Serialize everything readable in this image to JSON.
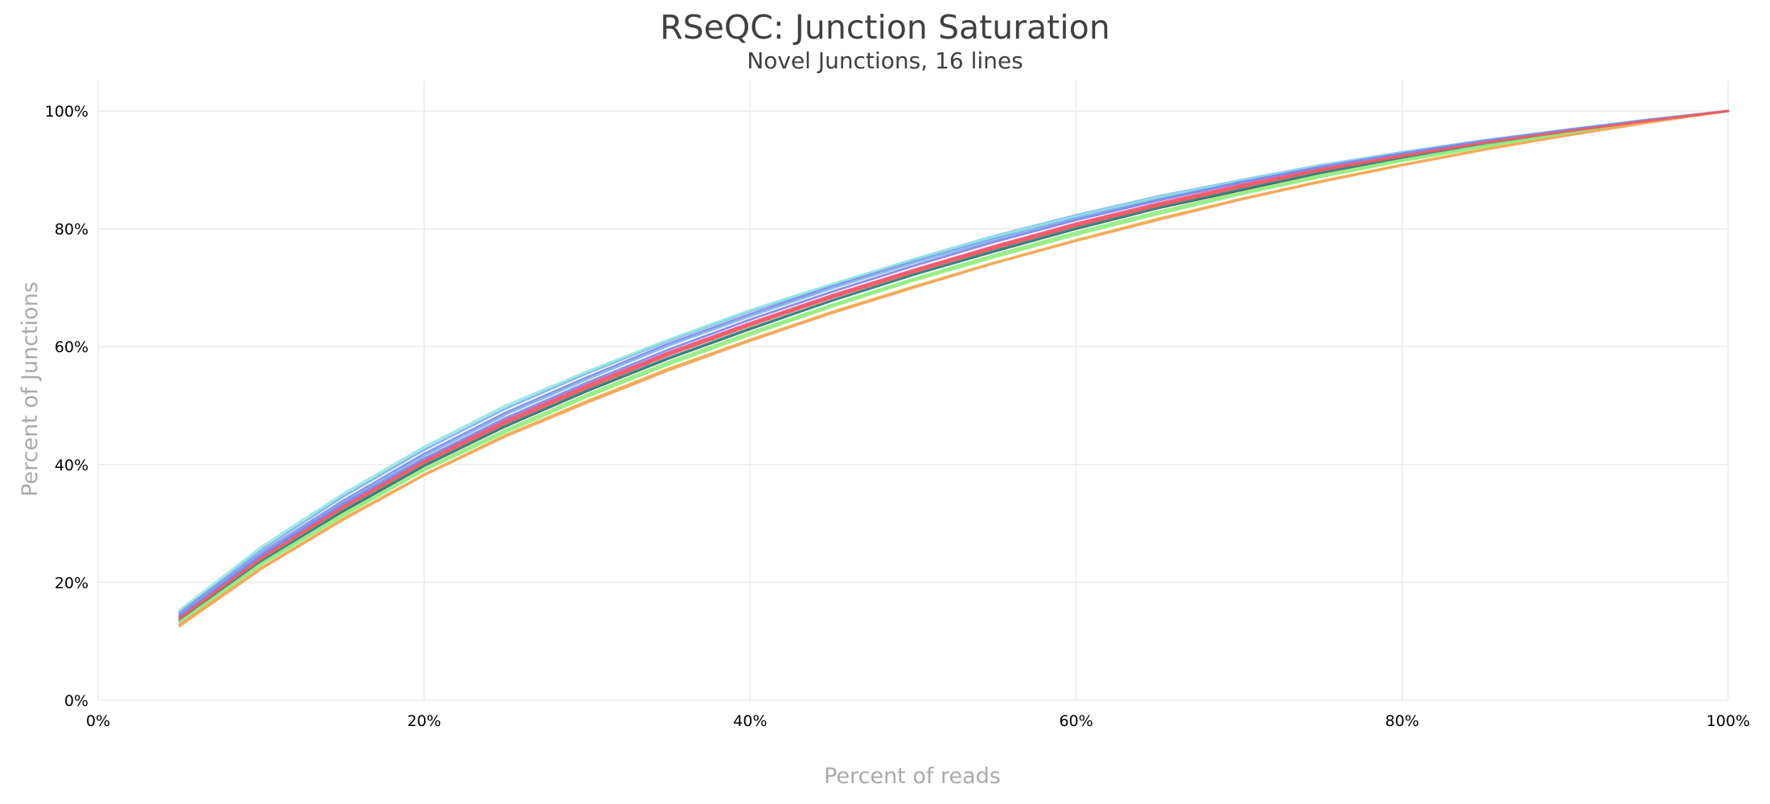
{
  "chart_data": {
    "type": "line",
    "title": "RSeQC: Junction Saturation",
    "subtitle": "Novel Junctions, 16 lines",
    "xlabel": "Percent of reads",
    "ylabel": "Percent of Junctions",
    "xlim": [
      0,
      100
    ],
    "ylim": [
      0,
      100
    ],
    "xticks": [
      0,
      20,
      40,
      60,
      80,
      100
    ],
    "yticks": [
      0,
      20,
      40,
      60,
      80,
      100
    ],
    "tick_suffix": "%",
    "grid": true,
    "x": [
      5,
      10,
      15,
      20,
      25,
      30,
      35,
      40,
      45,
      50,
      55,
      60,
      65,
      70,
      75,
      80,
      85,
      90,
      95,
      100
    ],
    "series": [
      {
        "color": "#7cb5ec",
        "values": [
          15.0,
          25.5,
          34.5,
          42.5,
          49.5,
          55.5,
          61.0,
          66.0,
          70.5,
          74.8,
          78.8,
          82.3,
          85.5,
          88.2,
          90.8,
          93.0,
          95.0,
          96.8,
          98.5,
          100
        ]
      },
      {
        "color": "#434348",
        "values": [
          13.5,
          23.5,
          32.0,
          39.8,
          46.5,
          52.5,
          58.0,
          63.0,
          67.8,
          72.2,
          76.2,
          80.0,
          83.5,
          86.5,
          89.5,
          92.0,
          94.3,
          96.3,
          98.2,
          100
        ]
      },
      {
        "color": "#90ed7d",
        "values": [
          13.2,
          23.0,
          31.3,
          39.0,
          45.5,
          51.5,
          57.0,
          62.0,
          66.8,
          71.2,
          75.2,
          79.0,
          82.5,
          85.8,
          88.8,
          91.5,
          93.9,
          96.0,
          98.1,
          100
        ]
      },
      {
        "color": "#f7a35c",
        "values": [
          12.6,
          22.3,
          30.6,
          38.2,
          44.8,
          50.5,
          56.0,
          61.0,
          65.7,
          70.0,
          74.2,
          78.0,
          81.5,
          84.9,
          88.0,
          90.8,
          93.5,
          95.8,
          98.0,
          100
        ]
      },
      {
        "color": "#8085e9",
        "values": [
          14.8,
          25.0,
          33.8,
          41.8,
          48.8,
          54.8,
          60.5,
          65.5,
          70.2,
          74.5,
          78.5,
          82.0,
          85.2,
          88.0,
          90.6,
          92.8,
          94.9,
          96.7,
          98.4,
          100
        ]
      },
      {
        "color": "#f15c80",
        "values": [
          14.0,
          24.2,
          32.8,
          40.5,
          47.2,
          53.2,
          58.8,
          63.8,
          68.5,
          72.8,
          76.8,
          80.5,
          84.0,
          87.2,
          90.0,
          92.4,
          94.6,
          96.5,
          98.3,
          100
        ]
      },
      {
        "color": "#e4d354",
        "values": [
          12.9,
          22.5,
          30.8,
          38.3,
          45.0,
          50.8,
          56.3,
          61.2,
          65.9,
          70.2,
          74.3,
          78.1,
          81.7,
          85.0,
          88.1,
          90.9,
          93.5,
          95.8,
          98.0,
          100
        ]
      },
      {
        "color": "#2b908f",
        "values": [
          13.6,
          23.6,
          32.2,
          39.9,
          46.6,
          52.6,
          58.1,
          63.1,
          67.8,
          72.2,
          76.3,
          80.1,
          83.6,
          86.7,
          89.6,
          92.1,
          94.4,
          96.4,
          98.2,
          100
        ]
      },
      {
        "color": "#f45b5b",
        "values": [
          14.2,
          24.5,
          33.0,
          40.8,
          47.5,
          53.5,
          59.0,
          64.0,
          68.7,
          73.0,
          77.0,
          80.8,
          84.2,
          87.3,
          90.1,
          92.5,
          94.7,
          96.6,
          98.3,
          100
        ]
      },
      {
        "color": "#91e8e1",
        "values": [
          15.3,
          26.0,
          35.0,
          43.0,
          50.0,
          55.8,
          61.2,
          66.2,
          70.6,
          74.8,
          78.7,
          82.1,
          85.3,
          88.1,
          90.7,
          92.9,
          94.9,
          96.7,
          98.4,
          100
        ]
      },
      {
        "color": "#7cb5ec",
        "values": [
          14.6,
          24.8,
          33.5,
          41.5,
          48.5,
          54.5,
          60.2,
          65.2,
          69.9,
          74.2,
          78.2,
          81.8,
          85.0,
          87.9,
          90.5,
          92.7,
          94.8,
          96.7,
          98.4,
          100
        ]
      },
      {
        "color": "#90ed7d",
        "values": [
          13.3,
          23.2,
          31.6,
          39.3,
          45.9,
          51.9,
          57.4,
          62.4,
          67.1,
          71.5,
          75.6,
          79.4,
          82.9,
          86.1,
          89.1,
          91.7,
          94.1,
          96.1,
          98.1,
          100
        ]
      },
      {
        "color": "#f7a35c",
        "values": [
          12.8,
          22.4,
          30.7,
          38.3,
          44.9,
          50.7,
          56.2,
          61.1,
          65.8,
          70.1,
          74.2,
          78.0,
          81.6,
          85.0,
          88.0,
          90.8,
          93.4,
          95.8,
          98.0,
          100
        ]
      },
      {
        "color": "#f15c80",
        "values": [
          14.1,
          24.4,
          32.9,
          40.7,
          47.4,
          53.4,
          59.0,
          64.0,
          68.7,
          73.0,
          77.1,
          80.9,
          84.3,
          87.4,
          90.2,
          92.6,
          94.7,
          96.6,
          98.3,
          100
        ]
      },
      {
        "color": "#8085e9",
        "values": [
          14.4,
          24.6,
          33.3,
          41.0,
          47.9,
          53.9,
          59.5,
          64.6,
          69.3,
          73.7,
          77.8,
          81.5,
          84.8,
          87.8,
          90.5,
          92.8,
          94.9,
          96.7,
          98.4,
          100
        ]
      },
      {
        "color": "#f45b5b",
        "values": [
          13.9,
          24.0,
          32.6,
          40.3,
          47.0,
          53.0,
          58.6,
          63.6,
          68.3,
          72.6,
          76.7,
          80.5,
          83.9,
          87.0,
          89.9,
          92.3,
          94.6,
          96.5,
          98.3,
          100
        ]
      }
    ]
  }
}
